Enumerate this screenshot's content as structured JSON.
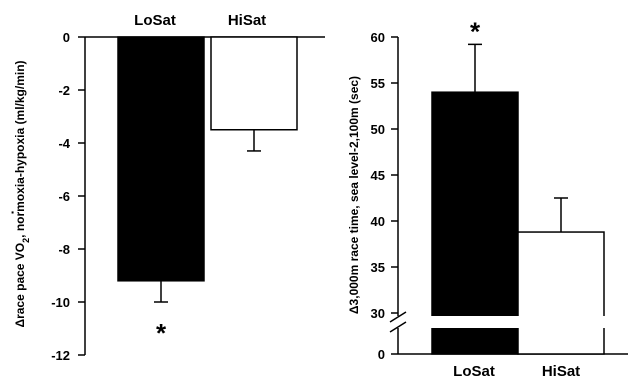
{
  "chart_data": [
    {
      "type": "bar",
      "ylabel_prefix": "Δrace pace V",
      "ylabel_dot": "·",
      "ylabel_sub": "O",
      "ylabel_subscript": "2",
      "ylabel_suffix": ", normoxia-hypoxia (ml/kg/min)",
      "categories": [
        "LoSat",
        "HiSat"
      ],
      "values": [
        -9.2,
        -3.5
      ],
      "errors": [
        0.8,
        0.8
      ],
      "colors": [
        "#000000",
        "#ffffff"
      ],
      "annotations": [
        {
          "category": "LoSat",
          "text": "*"
        }
      ],
      "ylim": [
        -12,
        0
      ],
      "yticks": [
        "0",
        "-2",
        "-4",
        "-6",
        "-8",
        "-10",
        "-12"
      ],
      "category_labels_position": "top"
    },
    {
      "type": "bar",
      "ylabel": "Δ3,000m race time, sea level-2,100m (sec)",
      "categories": [
        "LoSat",
        "HiSat"
      ],
      "values": [
        54,
        38.8
      ],
      "errors": [
        5.2,
        3.7
      ],
      "colors": [
        "#000000",
        "#ffffff"
      ],
      "annotations": [
        {
          "category": "LoSat",
          "text": "*"
        }
      ],
      "ylim": [
        30,
        60
      ],
      "axis_break": true,
      "yticks": [
        "60",
        "55",
        "50",
        "45",
        "40",
        "35",
        "30",
        "0"
      ],
      "category_labels_position": "bottom"
    }
  ]
}
